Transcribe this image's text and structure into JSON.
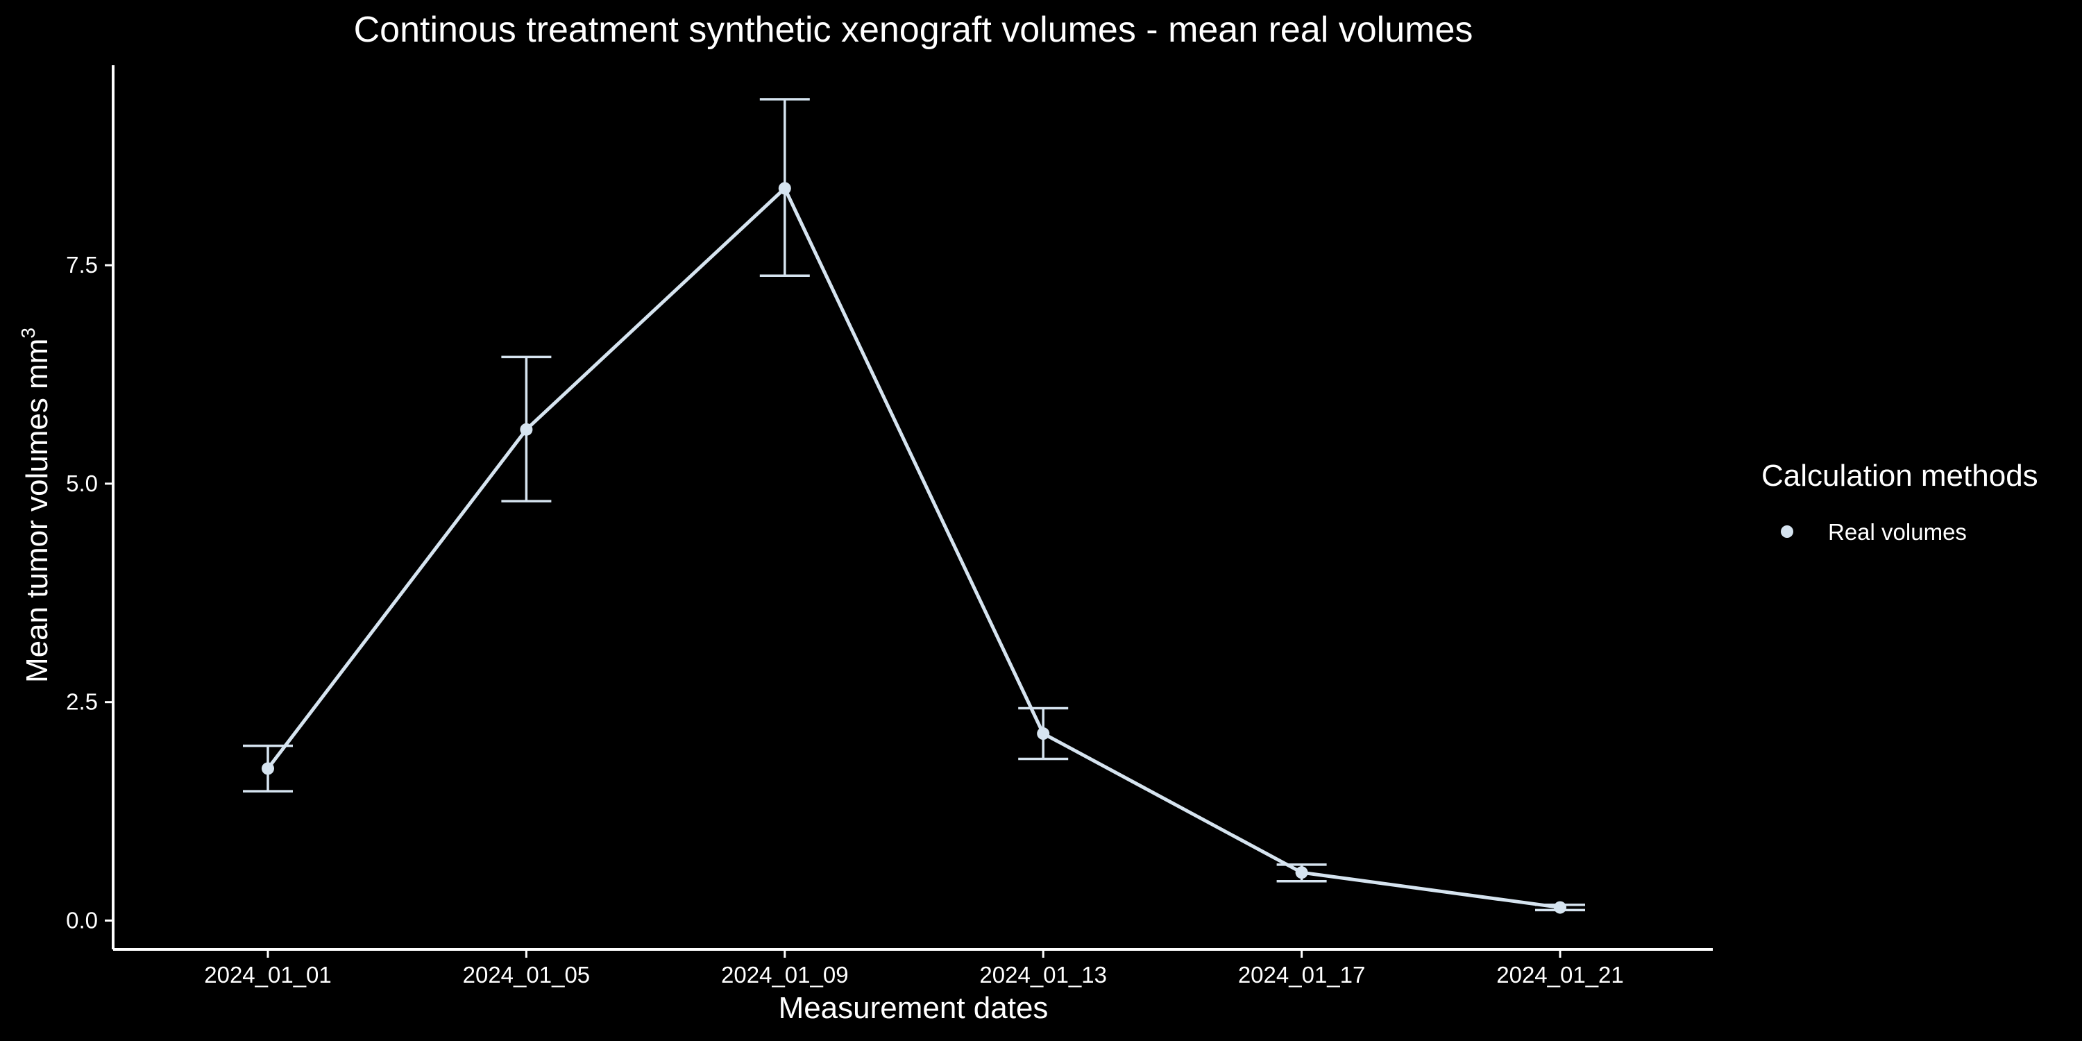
{
  "chart_data": {
    "type": "line",
    "title": "Continous treatment synthetic xenograft volumes - mean real volumes",
    "xlabel": "Measurement dates",
    "ylabel": "Mean tumor volumes mm",
    "ylabel_superscript": "3",
    "categories": [
      "2024_01_01",
      "2024_01_05",
      "2024_01_09",
      "2024_01_13",
      "2024_01_17",
      "2024_01_21"
    ],
    "series": [
      {
        "name": "Real volumes",
        "values": [
          1.74,
          5.62,
          8.38,
          2.14,
          0.55,
          0.15
        ],
        "error_lower": [
          1.48,
          4.8,
          7.38,
          1.85,
          0.45,
          0.12
        ],
        "error_upper": [
          2.0,
          6.45,
          9.4,
          2.43,
          0.64,
          0.18
        ]
      }
    ],
    "ylim": [
      -0.33,
      9.9
    ],
    "yticks": [
      0.0,
      2.5,
      5.0,
      7.5
    ],
    "ytick_labels": [
      "0.0",
      "2.5",
      "5.0",
      "7.5"
    ],
    "legend_title": "Calculation methods",
    "legend_position": "right",
    "grid": false,
    "colors": {
      "background": "#000000",
      "series": "#d6e4f0",
      "text": "#ffffff",
      "axis": "#ffffff"
    }
  }
}
